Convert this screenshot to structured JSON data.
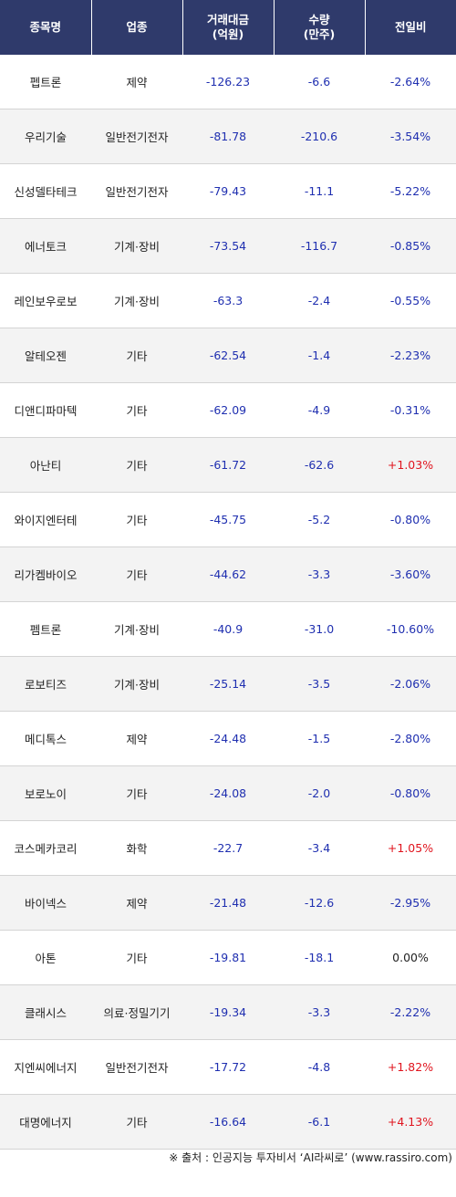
{
  "header": {
    "col_name": "종목명",
    "col_sector": "업종",
    "col_amount_line1": "거래대금",
    "col_amount_line2": "(억원)",
    "col_qty_line1": "수량",
    "col_qty_line2": "(만주)",
    "col_change": "전일비"
  },
  "rows": [
    {
      "name": "펩트론",
      "sector": "제약",
      "amount": "-126.23",
      "qty": "-6.6",
      "change": "-2.64%",
      "dir": "neg"
    },
    {
      "name": "우리기술",
      "sector": "일반전기전자",
      "amount": "-81.78",
      "qty": "-210.6",
      "change": "-3.54%",
      "dir": "neg"
    },
    {
      "name": "신성델타테크",
      "sector": "일반전기전자",
      "amount": "-79.43",
      "qty": "-11.1",
      "change": "-5.22%",
      "dir": "neg"
    },
    {
      "name": "에너토크",
      "sector": "기계·장비",
      "amount": "-73.54",
      "qty": "-116.7",
      "change": "-0.85%",
      "dir": "neg"
    },
    {
      "name": "레인보우로보",
      "sector": "기계·장비",
      "amount": "-63.3",
      "qty": "-2.4",
      "change": "-0.55%",
      "dir": "neg"
    },
    {
      "name": "알테오젠",
      "sector": "기타",
      "amount": "-62.54",
      "qty": "-1.4",
      "change": "-2.23%",
      "dir": "neg"
    },
    {
      "name": "디앤디파마텍",
      "sector": "기타",
      "amount": "-62.09",
      "qty": "-4.9",
      "change": "-0.31%",
      "dir": "neg"
    },
    {
      "name": "아난티",
      "sector": "기타",
      "amount": "-61.72",
      "qty": "-62.6",
      "change": "+1.03%",
      "dir": "pos"
    },
    {
      "name": "와이지엔터테",
      "sector": "기타",
      "amount": "-45.75",
      "qty": "-5.2",
      "change": "-0.80%",
      "dir": "neg"
    },
    {
      "name": "리가켐바이오",
      "sector": "기타",
      "amount": "-44.62",
      "qty": "-3.3",
      "change": "-3.60%",
      "dir": "neg"
    },
    {
      "name": "펨트론",
      "sector": "기계·장비",
      "amount": "-40.9",
      "qty": "-31.0",
      "change": "-10.60%",
      "dir": "neg"
    },
    {
      "name": "로보티즈",
      "sector": "기계·장비",
      "amount": "-25.14",
      "qty": "-3.5",
      "change": "-2.06%",
      "dir": "neg"
    },
    {
      "name": "메디톡스",
      "sector": "제약",
      "amount": "-24.48",
      "qty": "-1.5",
      "change": "-2.80%",
      "dir": "neg"
    },
    {
      "name": "보로노이",
      "sector": "기타",
      "amount": "-24.08",
      "qty": "-2.0",
      "change": "-0.80%",
      "dir": "neg"
    },
    {
      "name": "코스메카코리",
      "sector": "화학",
      "amount": "-22.7",
      "qty": "-3.4",
      "change": "+1.05%",
      "dir": "pos"
    },
    {
      "name": "바이넥스",
      "sector": "제약",
      "amount": "-21.48",
      "qty": "-12.6",
      "change": "-2.95%",
      "dir": "neg"
    },
    {
      "name": "아톤",
      "sector": "기타",
      "amount": "-19.81",
      "qty": "-18.1",
      "change": "0.00%",
      "dir": "zero"
    },
    {
      "name": "클래시스",
      "sector": "의료·정밀기기",
      "amount": "-19.34",
      "qty": "-3.3",
      "change": "-2.22%",
      "dir": "neg"
    },
    {
      "name": "지엔씨에너지",
      "sector": "일반전기전자",
      "amount": "-17.72",
      "qty": "-4.8",
      "change": "+1.82%",
      "dir": "pos"
    },
    {
      "name": "대명에너지",
      "sector": "기타",
      "amount": "-16.64",
      "qty": "-6.1",
      "change": "+4.13%",
      "dir": "pos"
    }
  ],
  "source": "※ 출처 : 인공지능 투자비서 ‘AI라씨로’ (www.rassiro.com)",
  "colors": {
    "header_bg": "#2f3a6b",
    "negative": "#1f2fb0",
    "positive": "#e0141e"
  }
}
